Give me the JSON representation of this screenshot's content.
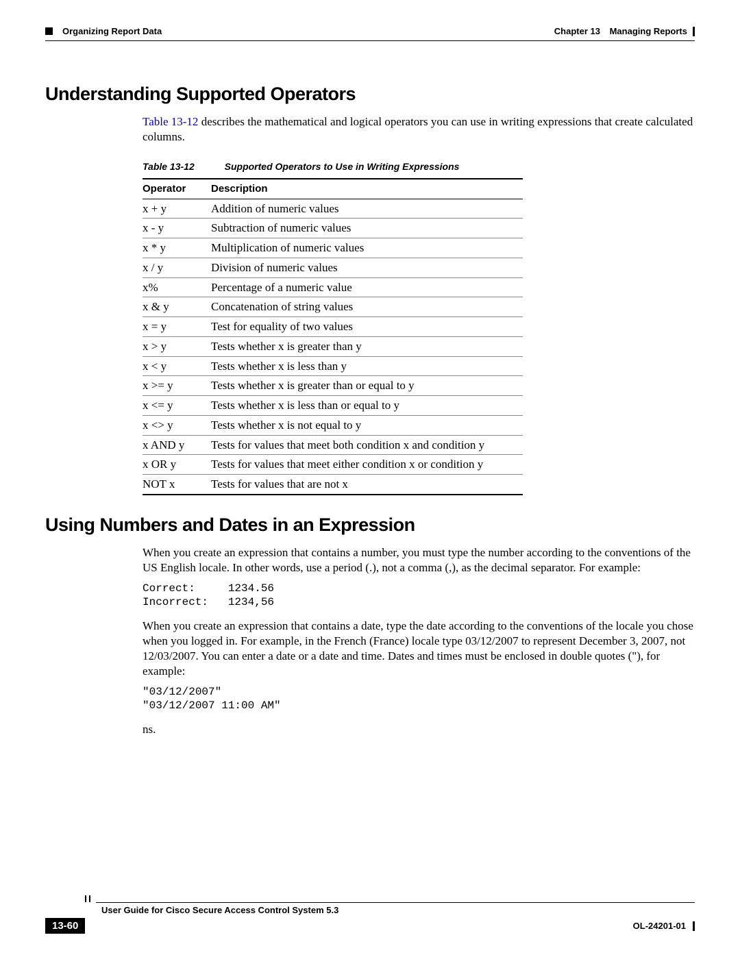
{
  "header": {
    "section_label": "Organizing Report Data",
    "chapter_label": "Chapter 13",
    "chapter_title": "Managing Reports"
  },
  "section1": {
    "heading": "Understanding Supported Operators",
    "intro_link": "Table 13-12",
    "intro_rest": " describes the mathematical and logical operators you can use in writing expressions that create calculated columns.",
    "table_caption_label": "Table 13-12",
    "table_caption_title": "Supported Operators to Use in Writing Expressions",
    "col_operator": "Operator",
    "col_description": "Description",
    "rows": [
      {
        "op": "x + y",
        "desc": "Addition of numeric values"
      },
      {
        "op": "x - y",
        "desc": "Subtraction of numeric values"
      },
      {
        "op": "x * y",
        "desc": "Multiplication of numeric values"
      },
      {
        "op": "x / y",
        "desc": "Division of numeric values"
      },
      {
        "op": "x%",
        "desc": "Percentage of a numeric value"
      },
      {
        "op": "x & y",
        "desc": "Concatenation of string values"
      },
      {
        "op": "x = y",
        "desc": "Test for equality of two values"
      },
      {
        "op": "x > y",
        "desc": "Tests whether x is greater than y"
      },
      {
        "op": "x < y",
        "desc": "Tests whether x is less than y"
      },
      {
        "op": "x >= y",
        "desc": "Tests whether x is greater than or equal to y"
      },
      {
        "op": "x <= y",
        "desc": "Tests whether x is less than or equal to y"
      },
      {
        "op": "x <> y",
        "desc": "Tests whether x is not equal to y"
      },
      {
        "op": "x AND y",
        "desc": "Tests for values that meet both condition x and condition y"
      },
      {
        "op": "x OR y",
        "desc": "Tests for values that meet either condition x or condition y"
      },
      {
        "op": "NOT x",
        "desc": "Tests for values that are not x"
      }
    ]
  },
  "section2": {
    "heading": "Using Numbers and Dates in an Expression",
    "para1": "When you create an expression that contains a number, you must type the number according to the conventions of the US English locale. In other words, use a period (.), not a comma (,), as the decimal separator. For example:",
    "code1": "Correct:     1234.56\nIncorrect:   1234,56",
    "para2": "When you create an expression that contains a date, type the date according to the conventions of the locale you chose when you logged in. For example, in the French (France) locale type 03/12/2007 to represent December 3, 2007, not 12/03/2007. You can enter a date or a date and time. Dates and times must be enclosed in double quotes (\"), for example:",
    "code2": "\"03/12/2007\"\n\"03/12/2007 11:00 AM\"",
    "trailing": "ns."
  },
  "footer": {
    "guide": "User Guide for Cisco Secure Access Control System 5.3",
    "page": "13-60",
    "docref": "OL-24201-01"
  }
}
